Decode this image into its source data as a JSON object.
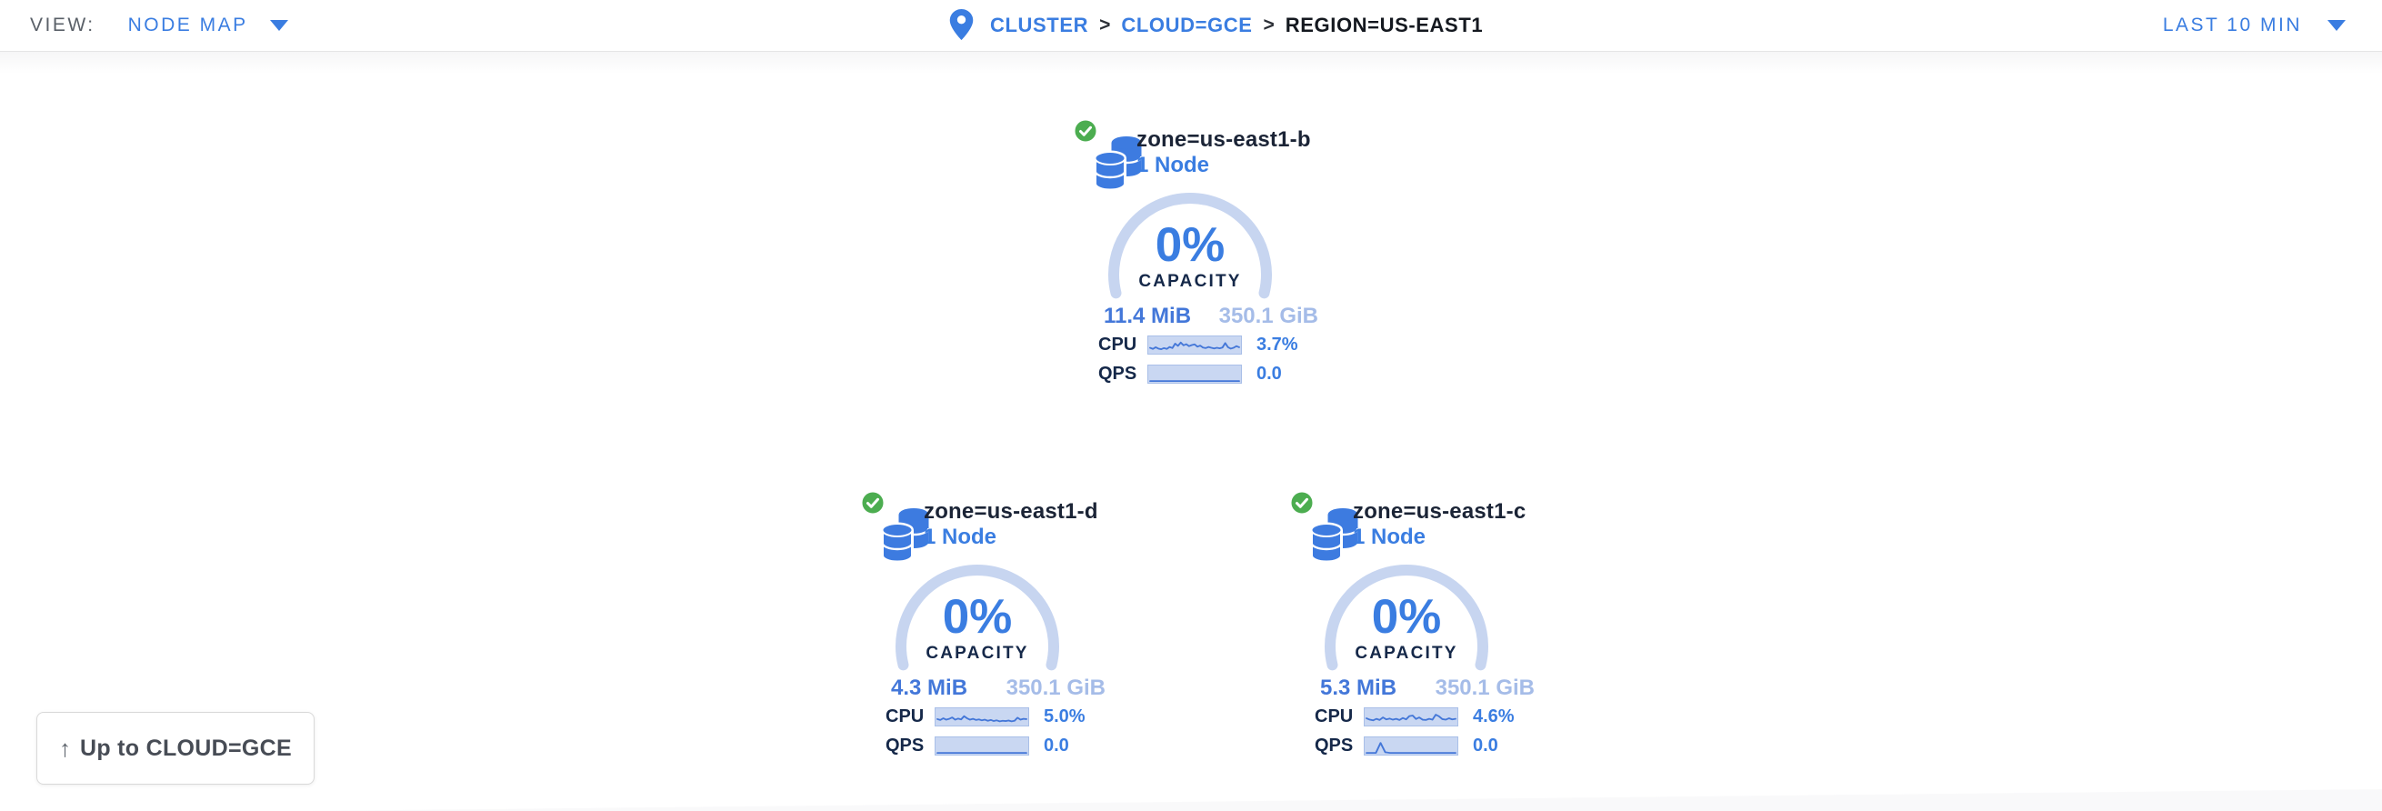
{
  "topbar": {
    "view_label": "VIEW:",
    "view_value": "NODE MAP",
    "breadcrumb": {
      "separator": ">",
      "items": [
        {
          "label": "CLUSTER"
        },
        {
          "label": "CLOUD=GCE"
        },
        {
          "label": "REGION=US-EAST1"
        }
      ]
    },
    "time_range": "LAST 10 MIN"
  },
  "zones": [
    {
      "name": "zone=us-east1-b",
      "nodes": "1 Node",
      "health": "healthy",
      "capacity_pct": "0%",
      "capacity_label": "CAPACITY",
      "used": "11.4 MiB",
      "total": "350.1 GiB",
      "cpu_label": "CPU",
      "cpu_value": "3.7%",
      "qps_label": "QPS",
      "qps_value": "0.0",
      "cpu_spark": [
        0.3,
        0.22,
        0.34,
        0.24,
        0.2,
        0.28,
        0.22,
        0.36,
        0.28,
        0.6,
        0.44,
        0.68,
        0.48,
        0.56,
        0.42,
        0.5,
        0.55,
        0.38,
        0.46,
        0.32,
        0.28,
        0.36,
        0.3,
        0.25,
        0.3,
        0.26,
        0.32,
        0.64,
        0.34,
        0.24,
        0.3,
        0.42,
        0.34
      ],
      "qps_spark": [
        0,
        0,
        0,
        0,
        0,
        0,
        0,
        0,
        0,
        0,
        0,
        0,
        0,
        0,
        0,
        0,
        0,
        0,
        0,
        0
      ]
    },
    {
      "name": "zone=us-east1-d",
      "nodes": "1 Node",
      "health": "healthy",
      "capacity_pct": "0%",
      "capacity_label": "CAPACITY",
      "used": "4.3 MiB",
      "total": "350.1 GiB",
      "cpu_label": "CPU",
      "cpu_value": "5.0%",
      "qps_label": "QPS",
      "qps_value": "0.0",
      "cpu_spark": [
        0.34,
        0.28,
        0.4,
        0.3,
        0.36,
        0.46,
        0.3,
        0.38,
        0.32,
        0.55,
        0.4,
        0.3,
        0.36,
        0.28,
        0.32,
        0.25,
        0.3,
        0.22,
        0.28,
        0.2,
        0.25,
        0.18,
        0.22,
        0.2,
        0.24,
        0.18,
        0.22,
        0.44,
        0.3,
        0.36,
        0.34
      ],
      "qps_spark": [
        0,
        0,
        0,
        0,
        0,
        0,
        0,
        0,
        0,
        0,
        0,
        0,
        0,
        0,
        0,
        0,
        0,
        0,
        0,
        0
      ]
    },
    {
      "name": "zone=us-east1-c",
      "nodes": "1 Node",
      "health": "healthy",
      "capacity_pct": "0%",
      "capacity_label": "CAPACITY",
      "used": "5.3 MiB",
      "total": "350.1 GiB",
      "cpu_label": "CPU",
      "cpu_value": "4.6%",
      "qps_label": "QPS",
      "qps_value": "0.0",
      "cpu_spark": [
        0.4,
        0.3,
        0.25,
        0.36,
        0.28,
        0.46,
        0.32,
        0.38,
        0.3,
        0.36,
        0.28,
        0.42,
        0.32,
        0.56,
        0.6,
        0.35,
        0.46,
        0.3,
        0.28,
        0.36,
        0.3,
        0.66,
        0.54,
        0.34,
        0.3,
        0.4,
        0.32,
        0.36
      ],
      "qps_spark": [
        0,
        0,
        0,
        0.72,
        0.05,
        0,
        0,
        0,
        0,
        0,
        0,
        0,
        0,
        0,
        0,
        0,
        0,
        0,
        0,
        0
      ]
    }
  ],
  "up_button": {
    "arrow": "↑",
    "label": "Up to CLOUD=GCE"
  },
  "colors": {
    "accent_blue": "#3a7de1",
    "ring_light_blue": "#c7d5f0",
    "dark_navy": "#152849",
    "used_blue": "#4377d9",
    "muted_blue": "#a5bce8",
    "spark_fill": "#c9d7f2",
    "spark_line": "#4477d8",
    "healthy_green": "#4cad50"
  }
}
